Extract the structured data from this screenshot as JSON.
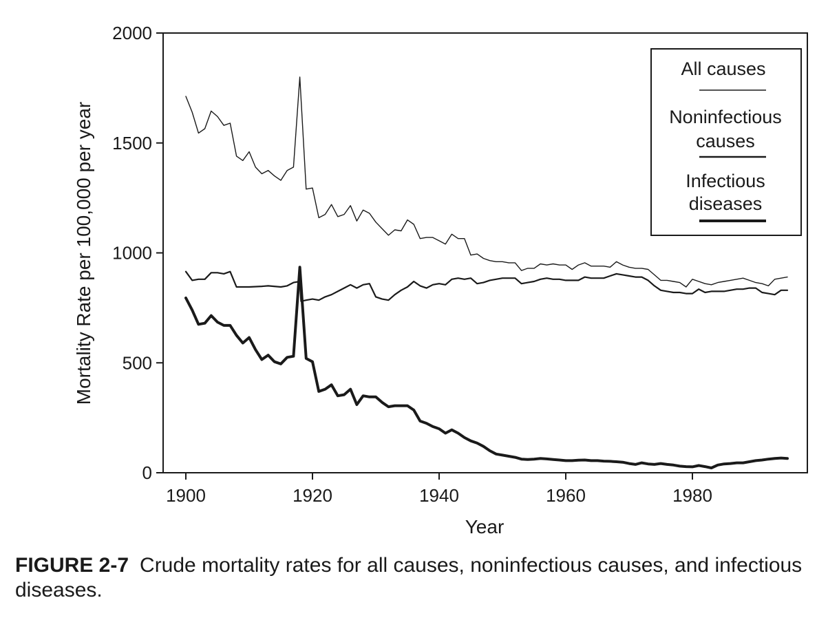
{
  "chart_data": {
    "type": "line",
    "xlabel": "Year",
    "ylabel": "Mortality Rate per 100,000 per year",
    "xlim": [
      1900,
      1995
    ],
    "ylim": [
      0,
      2000
    ],
    "xticks": [
      1900,
      1920,
      1940,
      1960,
      1980
    ],
    "yticks": [
      0,
      500,
      1000,
      1500,
      2000
    ],
    "grid": false,
    "legend_position": "top-right",
    "series": [
      {
        "name": "All causes",
        "style": "thin",
        "points": [
          [
            1900,
            1712
          ],
          [
            1901,
            1640
          ],
          [
            1902,
            1545
          ],
          [
            1903,
            1565
          ],
          [
            1904,
            1645
          ],
          [
            1905,
            1620
          ],
          [
            1906,
            1580
          ],
          [
            1907,
            1590
          ],
          [
            1908,
            1440
          ],
          [
            1909,
            1420
          ],
          [
            1910,
            1460
          ],
          [
            1911,
            1390
          ],
          [
            1912,
            1360
          ],
          [
            1913,
            1375
          ],
          [
            1914,
            1350
          ],
          [
            1915,
            1330
          ],
          [
            1916,
            1375
          ],
          [
            1917,
            1390
          ],
          [
            1918,
            1800
          ],
          [
            1919,
            1290
          ],
          [
            1920,
            1295
          ],
          [
            1921,
            1160
          ],
          [
            1922,
            1175
          ],
          [
            1923,
            1220
          ],
          [
            1924,
            1165
          ],
          [
            1925,
            1175
          ],
          [
            1926,
            1215
          ],
          [
            1927,
            1145
          ],
          [
            1928,
            1195
          ],
          [
            1929,
            1180
          ],
          [
            1930,
            1140
          ],
          [
            1931,
            1110
          ],
          [
            1932,
            1080
          ],
          [
            1933,
            1105
          ],
          [
            1934,
            1100
          ],
          [
            1935,
            1150
          ],
          [
            1936,
            1130
          ],
          [
            1937,
            1065
          ],
          [
            1938,
            1070
          ],
          [
            1939,
            1070
          ],
          [
            1940,
            1055
          ],
          [
            1941,
            1040
          ],
          [
            1942,
            1085
          ],
          [
            1943,
            1065
          ],
          [
            1944,
            1065
          ],
          [
            1945,
            990
          ],
          [
            1946,
            995
          ],
          [
            1947,
            975
          ],
          [
            1948,
            965
          ],
          [
            1949,
            960
          ],
          [
            1950,
            960
          ],
          [
            1951,
            955
          ],
          [
            1952,
            955
          ],
          [
            1953,
            920
          ],
          [
            1954,
            930
          ],
          [
            1955,
            930
          ],
          [
            1956,
            950
          ],
          [
            1957,
            945
          ],
          [
            1958,
            950
          ],
          [
            1959,
            945
          ],
          [
            1960,
            945
          ],
          [
            1961,
            925
          ],
          [
            1962,
            945
          ],
          [
            1963,
            955
          ],
          [
            1964,
            940
          ],
          [
            1965,
            940
          ],
          [
            1966,
            940
          ],
          [
            1967,
            935
          ],
          [
            1968,
            960
          ],
          [
            1969,
            945
          ],
          [
            1970,
            935
          ],
          [
            1971,
            930
          ],
          [
            1972,
            930
          ],
          [
            1973,
            925
          ],
          [
            1974,
            900
          ],
          [
            1975,
            875
          ],
          [
            1976,
            875
          ],
          [
            1977,
            870
          ],
          [
            1978,
            865
          ],
          [
            1979,
            845
          ],
          [
            1980,
            880
          ],
          [
            1981,
            870
          ],
          [
            1982,
            860
          ],
          [
            1983,
            855
          ],
          [
            1984,
            865
          ],
          [
            1985,
            870
          ],
          [
            1986,
            875
          ],
          [
            1987,
            880
          ],
          [
            1988,
            885
          ],
          [
            1989,
            875
          ],
          [
            1990,
            865
          ],
          [
            1991,
            860
          ],
          [
            1992,
            850
          ],
          [
            1993,
            880
          ],
          [
            1994,
            885
          ],
          [
            1995,
            890
          ]
        ]
      },
      {
        "name": "Noninfectious causes",
        "style": "medium",
        "points": [
          [
            1900,
            915
          ],
          [
            1901,
            875
          ],
          [
            1902,
            880
          ],
          [
            1903,
            880
          ],
          [
            1904,
            910
          ],
          [
            1905,
            910
          ],
          [
            1906,
            905
          ],
          [
            1907,
            915
          ],
          [
            1908,
            845
          ],
          [
            1910,
            845
          ],
          [
            1912,
            848
          ],
          [
            1913,
            850
          ],
          [
            1915,
            845
          ],
          [
            1916,
            850
          ],
          [
            1917,
            865
          ],
          [
            1918,
            870
          ],
          [
            1918.2,
            780
          ],
          [
            1919,
            785
          ],
          [
            1920,
            790
          ],
          [
            1921,
            785
          ],
          [
            1922,
            800
          ],
          [
            1923,
            810
          ],
          [
            1924,
            825
          ],
          [
            1925,
            840
          ],
          [
            1926,
            855
          ],
          [
            1927,
            840
          ],
          [
            1928,
            855
          ],
          [
            1929,
            860
          ],
          [
            1930,
            800
          ],
          [
            1931,
            790
          ],
          [
            1932,
            785
          ],
          [
            1933,
            810
          ],
          [
            1934,
            830
          ],
          [
            1935,
            845
          ],
          [
            1936,
            870
          ],
          [
            1937,
            850
          ],
          [
            1938,
            840
          ],
          [
            1939,
            855
          ],
          [
            1940,
            860
          ],
          [
            1941,
            855
          ],
          [
            1942,
            880
          ],
          [
            1943,
            885
          ],
          [
            1944,
            880
          ],
          [
            1945,
            885
          ],
          [
            1946,
            860
          ],
          [
            1947,
            865
          ],
          [
            1948,
            875
          ],
          [
            1949,
            880
          ],
          [
            1950,
            885
          ],
          [
            1951,
            885
          ],
          [
            1952,
            885
          ],
          [
            1953,
            860
          ],
          [
            1954,
            865
          ],
          [
            1955,
            870
          ],
          [
            1956,
            880
          ],
          [
            1957,
            885
          ],
          [
            1958,
            880
          ],
          [
            1959,
            880
          ],
          [
            1960,
            875
          ],
          [
            1961,
            875
          ],
          [
            1962,
            875
          ],
          [
            1963,
            890
          ],
          [
            1964,
            885
          ],
          [
            1965,
            885
          ],
          [
            1966,
            885
          ],
          [
            1967,
            895
          ],
          [
            1968,
            905
          ],
          [
            1969,
            900
          ],
          [
            1970,
            895
          ],
          [
            1971,
            890
          ],
          [
            1972,
            890
          ],
          [
            1973,
            875
          ],
          [
            1974,
            850
          ],
          [
            1975,
            830
          ],
          [
            1976,
            825
          ],
          [
            1977,
            820
          ],
          [
            1978,
            820
          ],
          [
            1979,
            815
          ],
          [
            1980,
            815
          ],
          [
            1981,
            835
          ],
          [
            1982,
            820
          ],
          [
            1983,
            825
          ],
          [
            1984,
            825
          ],
          [
            1985,
            825
          ],
          [
            1986,
            830
          ],
          [
            1987,
            835
          ],
          [
            1988,
            835
          ],
          [
            1989,
            840
          ],
          [
            1990,
            840
          ],
          [
            1991,
            820
          ],
          [
            1992,
            815
          ],
          [
            1993,
            810
          ],
          [
            1994,
            830
          ],
          [
            1995,
            830
          ]
        ]
      },
      {
        "name": "Infectious diseases",
        "style": "thick",
        "points": [
          [
            1900,
            795
          ],
          [
            1901,
            740
          ],
          [
            1902,
            675
          ],
          [
            1903,
            680
          ],
          [
            1904,
            715
          ],
          [
            1905,
            685
          ],
          [
            1906,
            670
          ],
          [
            1907,
            670
          ],
          [
            1908,
            625
          ],
          [
            1909,
            590
          ],
          [
            1910,
            615
          ],
          [
            1911,
            560
          ],
          [
            1912,
            515
          ],
          [
            1913,
            535
          ],
          [
            1914,
            505
          ],
          [
            1915,
            495
          ],
          [
            1916,
            525
          ],
          [
            1917,
            530
          ],
          [
            1918,
            935
          ],
          [
            1919,
            520
          ],
          [
            1920,
            505
          ],
          [
            1921,
            370
          ],
          [
            1922,
            380
          ],
          [
            1923,
            400
          ],
          [
            1924,
            350
          ],
          [
            1925,
            355
          ],
          [
            1926,
            380
          ],
          [
            1927,
            310
          ],
          [
            1928,
            350
          ],
          [
            1929,
            345
          ],
          [
            1930,
            345
          ],
          [
            1931,
            320
          ],
          [
            1932,
            300
          ],
          [
            1933,
            305
          ],
          [
            1934,
            305
          ],
          [
            1935,
            305
          ],
          [
            1936,
            285
          ],
          [
            1937,
            235
          ],
          [
            1938,
            225
          ],
          [
            1939,
            210
          ],
          [
            1940,
            200
          ],
          [
            1941,
            180
          ],
          [
            1942,
            195
          ],
          [
            1943,
            180
          ],
          [
            1944,
            160
          ],
          [
            1945,
            145
          ],
          [
            1946,
            135
          ],
          [
            1947,
            120
          ],
          [
            1948,
            100
          ],
          [
            1949,
            85
          ],
          [
            1950,
            80
          ],
          [
            1951,
            75
          ],
          [
            1952,
            70
          ],
          [
            1953,
            62
          ],
          [
            1954,
            60
          ],
          [
            1955,
            62
          ],
          [
            1956,
            65
          ],
          [
            1957,
            63
          ],
          [
            1958,
            60
          ],
          [
            1959,
            58
          ],
          [
            1960,
            55
          ],
          [
            1961,
            55
          ],
          [
            1962,
            57
          ],
          [
            1963,
            58
          ],
          [
            1964,
            55
          ],
          [
            1965,
            55
          ],
          [
            1966,
            53
          ],
          [
            1967,
            52
          ],
          [
            1968,
            50
          ],
          [
            1969,
            48
          ],
          [
            1970,
            42
          ],
          [
            1971,
            38
          ],
          [
            1972,
            45
          ],
          [
            1973,
            40
          ],
          [
            1974,
            38
          ],
          [
            1975,
            42
          ],
          [
            1976,
            38
          ],
          [
            1977,
            35
          ],
          [
            1978,
            30
          ],
          [
            1979,
            28
          ],
          [
            1980,
            27
          ],
          [
            1981,
            33
          ],
          [
            1982,
            28
          ],
          [
            1983,
            22
          ],
          [
            1984,
            35
          ],
          [
            1985,
            40
          ],
          [
            1986,
            42
          ],
          [
            1987,
            45
          ],
          [
            1988,
            45
          ],
          [
            1989,
            50
          ],
          [
            1990,
            55
          ],
          [
            1991,
            58
          ],
          [
            1992,
            62
          ],
          [
            1993,
            65
          ],
          [
            1994,
            67
          ],
          [
            1995,
            65
          ]
        ]
      }
    ],
    "legend_labels": {
      "all": "All causes",
      "nonA": "Noninfectious",
      "nonB": "causes",
      "infA": "Infectious",
      "infB": "diseases"
    }
  },
  "caption": {
    "label": "FIGURE 2-7",
    "text": "Crude mortality rates for all causes, noninfectious causes, and infectious diseases."
  }
}
